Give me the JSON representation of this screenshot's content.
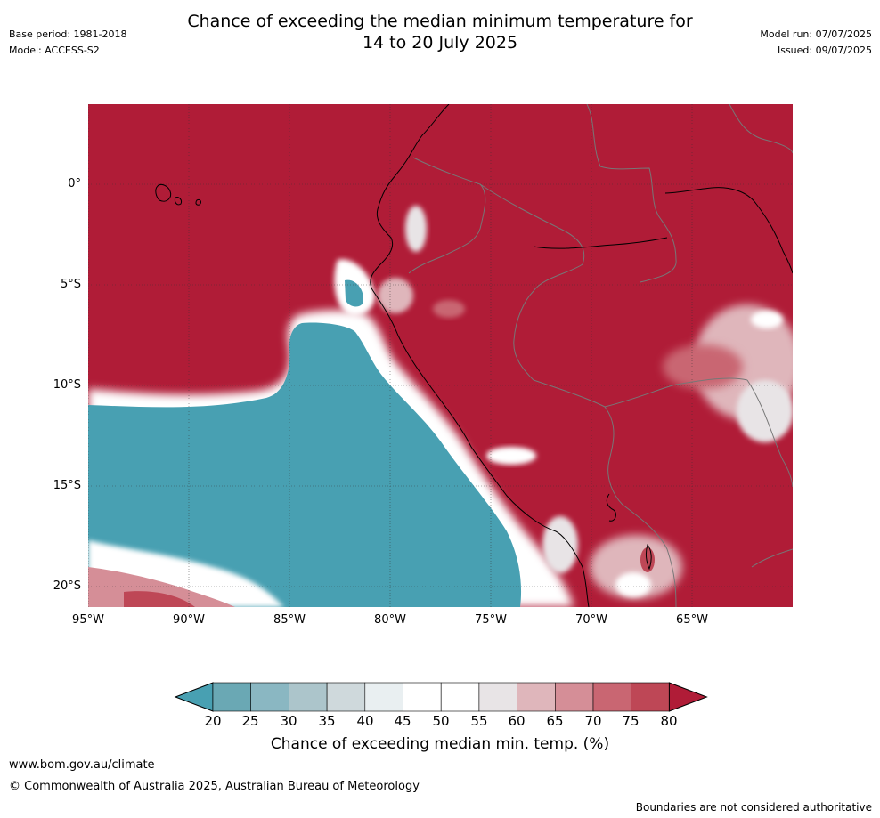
{
  "header": {
    "base_period": "Base period: 1981-2018",
    "model": "Model: ACCESS-S2",
    "title_line1": "Chance of exceeding the median minimum temperature for",
    "title_line2": "14 to 20 July 2025",
    "model_run": "Model run: 07/07/2025",
    "issued": "Issued: 09/07/2025"
  },
  "map": {
    "lat_labels": [
      "0°",
      "5°S",
      "10°S",
      "15°S",
      "20°S"
    ],
    "lon_labels": [
      "95°W",
      "90°W",
      "85°W",
      "80°W",
      "75°W",
      "70°W",
      "65°W"
    ],
    "colors": {
      "high": "#b01c37",
      "low": "#48a0b2",
      "neutral": "#ffffff"
    }
  },
  "colorbar": {
    "ticks": [
      "20",
      "25",
      "30",
      "35",
      "40",
      "45",
      "50",
      "55",
      "60",
      "65",
      "70",
      "75",
      "80"
    ],
    "label": "Chance of exceeding median min. temp. (%)",
    "colors": [
      "#48a0b2",
      "#6aa8b4",
      "#8ab7c2",
      "#acc5cb",
      "#cfd9dc",
      "#e9eff1",
      "#ffffff",
      "#ffffff",
      "#e8e4e6",
      "#dfb6bb",
      "#d58e97",
      "#c96672",
      "#be4756",
      "#b01c37"
    ]
  },
  "footer": {
    "website": "www.bom.gov.au/climate",
    "copyright": "© Commonwealth of Australia 2025, Australian Bureau of Meteorology",
    "disclaimer": "Boundaries are not considered authoritative"
  }
}
